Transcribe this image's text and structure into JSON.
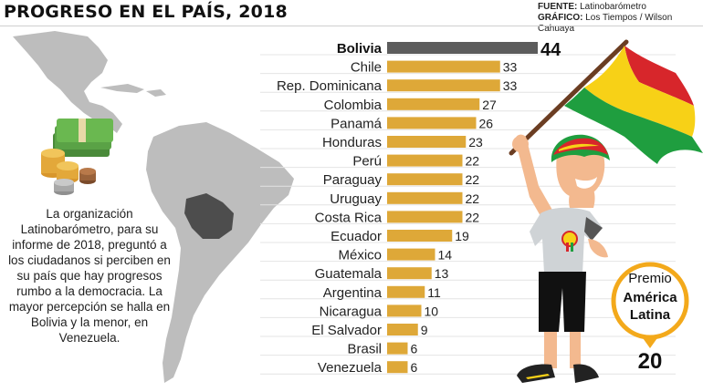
{
  "header": {
    "title": "PROGRESO EN EL PAÍS, 2018",
    "source_label": "FUENTE:",
    "source_value": "Latinobarómetro",
    "graphic_label": "GRÁFICO:",
    "graphic_value": "Los Tiempos / Wilson Cahuaya"
  },
  "caption": "La organización Latinobarómetro, para su informe de 2018, preguntó a los ciudadanos si perciben en su país que hay progresos rumbo a la democracia. La mayor percepción se halla en Bolivia y la menor, en Venezuela.",
  "badge": {
    "line1": "Premio",
    "line2": "América",
    "line3": "Latina",
    "value": "20"
  },
  "colors": {
    "bar": "#dea838",
    "highlight_bar": "#5c5c5c",
    "map_land": "#bdbdbd",
    "map_highlight": "#4d4d4d",
    "badge_ring": "#f3a91b",
    "flag_red": "#d7262b",
    "flag_yellow": "#f7d117",
    "flag_green": "#1f9e3f"
  },
  "chart_data": {
    "type": "bar",
    "orientation": "horizontal",
    "title": "PROGRESO EN EL PAÍS, 2018",
    "highlight": "Bolivia",
    "categories": [
      "Bolivia",
      "Chile",
      "Rep. Dominicana",
      "Colombia",
      "Panamá",
      "Honduras",
      "Perú",
      "Paraguay",
      "Uruguay",
      "Costa Rica",
      "Ecuador",
      "México",
      "Guatemala",
      "Argentina",
      "Nicaragua",
      "El Salvador",
      "Brasil",
      "Venezuela"
    ],
    "values": [
      44,
      33,
      33,
      27,
      26,
      23,
      22,
      22,
      22,
      22,
      19,
      14,
      13,
      11,
      10,
      9,
      6,
      6
    ],
    "xlim": [
      0,
      44
    ],
    "grid": true
  }
}
